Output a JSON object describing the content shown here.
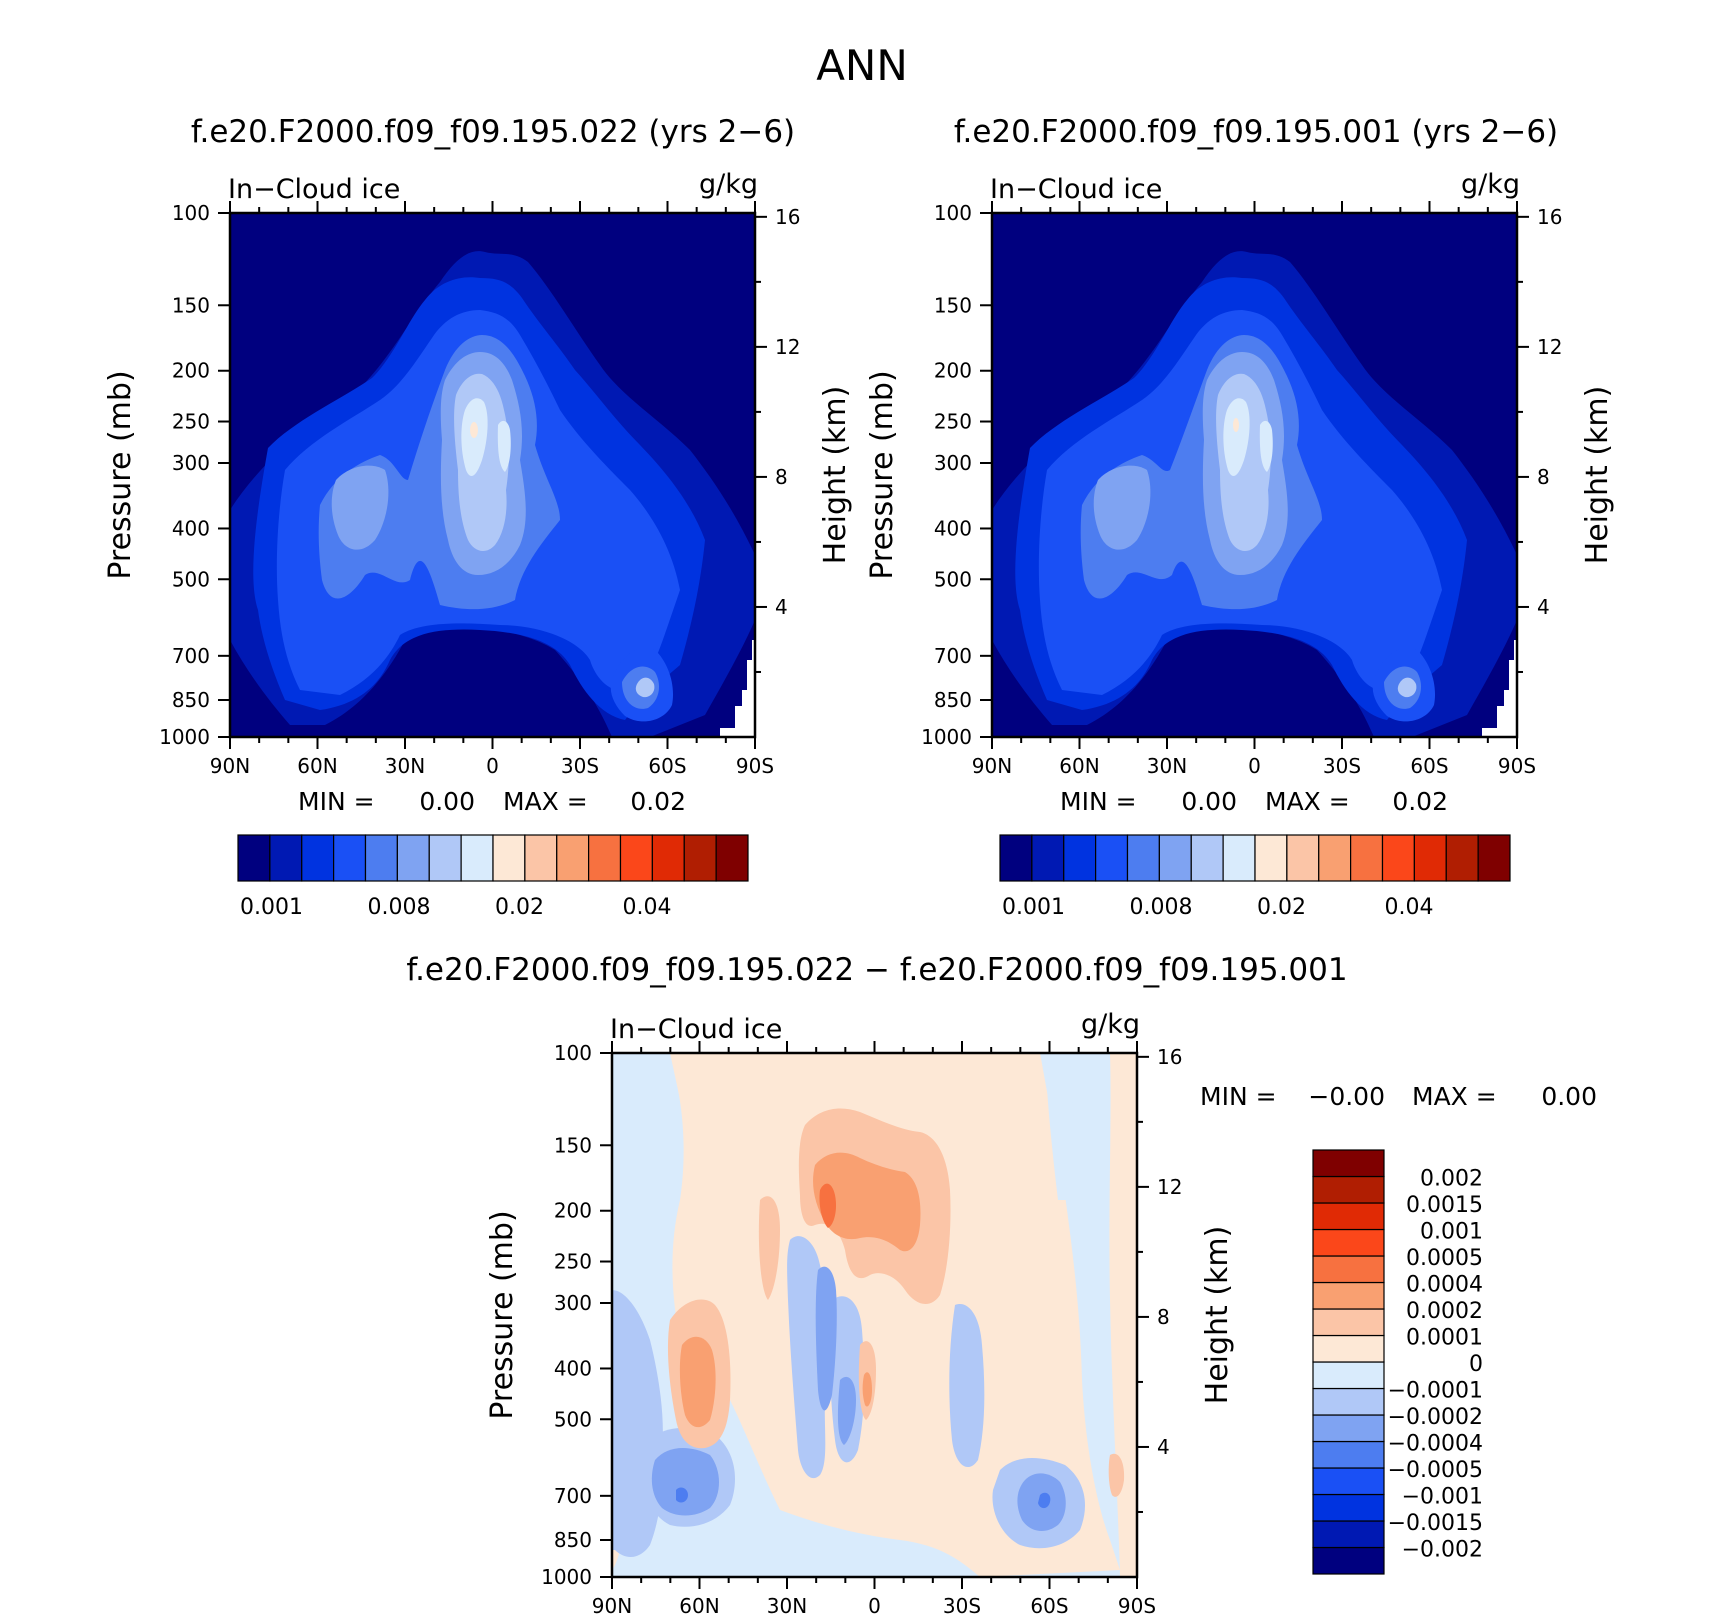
{
  "figure": {
    "title": "ANN"
  },
  "chart_data": [
    {
      "type": "heatmap",
      "title": "f.e20.F2000.f09_f09.195.022 (yrs 2−6)",
      "left_label": "In−Cloud ice",
      "unit_label": "g/kg",
      "ylabel": "Pressure (mb)",
      "ylabel_right": "Height (km)",
      "x_ticks": [
        "90N",
        "60N",
        "30N",
        "0",
        "30S",
        "60S",
        "90S"
      ],
      "y_ticks": [
        "100",
        "150",
        "200",
        "250",
        "300",
        "400",
        "500",
        "700",
        "850",
        "1000"
      ],
      "y_ticks_right": [
        "16",
        "12",
        "8",
        "4"
      ],
      "stats": {
        "min_label": "MIN =",
        "min_value": "0.00",
        "max_label": "MAX =",
        "max_value": "0.02"
      },
      "colorbar": {
        "orientation": "horizontal",
        "colors": [
          "#00007f",
          "#0019b3",
          "#0033e0",
          "#1a50f5",
          "#4d7df0",
          "#7fa3f2",
          "#b0c8f7",
          "#d9ebfc",
          "#fde8d6",
          "#fbc5a7",
          "#f9a071",
          "#f77140",
          "#fb471a",
          "#e02a05",
          "#b01e02",
          "#7f0000"
        ],
        "tick_labels": [
          "0.001",
          "0.008",
          "0.02",
          "0.04"
        ]
      }
    },
    {
      "type": "heatmap",
      "title": "f.e20.F2000.f09_f09.195.001 (yrs 2−6)",
      "left_label": "In−Cloud ice",
      "unit_label": "g/kg",
      "ylabel": "Pressure (mb)",
      "ylabel_right": "Height (km)",
      "x_ticks": [
        "90N",
        "60N",
        "30N",
        "0",
        "30S",
        "60S",
        "90S"
      ],
      "y_ticks": [
        "100",
        "150",
        "200",
        "250",
        "300",
        "400",
        "500",
        "700",
        "850",
        "1000"
      ],
      "y_ticks_right": [
        "16",
        "12",
        "8",
        "4"
      ],
      "stats": {
        "min_label": "MIN =",
        "min_value": "0.00",
        "max_label": "MAX =",
        "max_value": "0.02"
      },
      "colorbar": {
        "orientation": "horizontal",
        "colors": [
          "#00007f",
          "#0019b3",
          "#0033e0",
          "#1a50f5",
          "#4d7df0",
          "#7fa3f2",
          "#b0c8f7",
          "#d9ebfc",
          "#fde8d6",
          "#fbc5a7",
          "#f9a071",
          "#f77140",
          "#fb471a",
          "#e02a05",
          "#b01e02",
          "#7f0000"
        ],
        "tick_labels": [
          "0.001",
          "0.008",
          "0.02",
          "0.04"
        ]
      }
    },
    {
      "type": "heatmap",
      "title": "f.e20.F2000.f09_f09.195.022 − f.e20.F2000.f09_f09.195.001",
      "left_label": "In−Cloud ice",
      "unit_label": "g/kg",
      "ylabel": "Pressure (mb)",
      "ylabel_right": "Height (km)",
      "x_ticks": [
        "90N",
        "60N",
        "30N",
        "0",
        "30S",
        "60S",
        "90S"
      ],
      "y_ticks": [
        "100",
        "150",
        "200",
        "250",
        "300",
        "400",
        "500",
        "700",
        "850",
        "1000"
      ],
      "y_ticks_right": [
        "16",
        "12",
        "8",
        "4"
      ],
      "stats": {
        "min_label": "MIN =",
        "min_value": "−0.00",
        "max_label": "MAX =",
        "max_value": "0.00"
      },
      "colorbar": {
        "orientation": "vertical",
        "colors": [
          "#00007f",
          "#0019b3",
          "#0033e0",
          "#1a50f5",
          "#4d7df0",
          "#7fa3f2",
          "#b0c8f7",
          "#d9ebfc",
          "#fde8d6",
          "#fbc5a7",
          "#f9a071",
          "#f77140",
          "#fb471a",
          "#e02a05",
          "#b01e02",
          "#7f0000"
        ],
        "tick_labels": [
          "−0.002",
          "−0.0015",
          "−0.001",
          "−0.0005",
          "−0.0004",
          "−0.0002",
          "−0.0001",
          "0",
          "0.0001",
          "0.0002",
          "0.0004",
          "0.0005",
          "0.001",
          "0.0015",
          "0.002"
        ]
      }
    }
  ]
}
